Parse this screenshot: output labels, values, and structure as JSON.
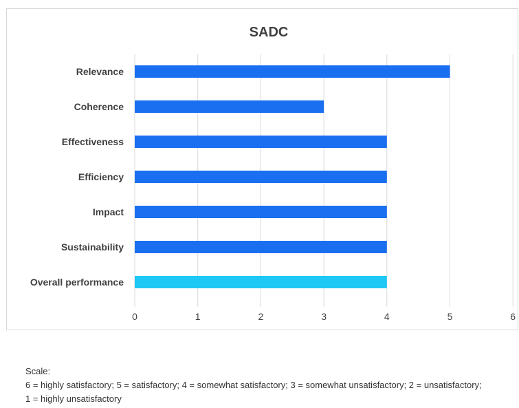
{
  "chart_data": {
    "type": "bar",
    "orientation": "horizontal",
    "title": "SADC",
    "categories": [
      "Relevance",
      "Coherence",
      "Effectiveness",
      "Efficiency",
      "Impact",
      "Sustainability",
      "Overall performance"
    ],
    "values": [
      5,
      3,
      4,
      4,
      4,
      4,
      4
    ],
    "bar_colors": [
      "#1a6ff0",
      "#1a6ff0",
      "#1a6ff0",
      "#1a6ff0",
      "#1a6ff0",
      "#1a6ff0",
      "#1ec8f5"
    ],
    "xlim": [
      0,
      6
    ],
    "xticks": [
      0,
      1,
      2,
      3,
      4,
      5,
      6
    ],
    "grid": "vertical",
    "legend": "none"
  },
  "scale_note": {
    "heading": "Scale:",
    "line1": "6 = highly satisfactory; 5 = satisfactory; 4 = somewhat satisfactory; 3 = somewhat unsatisfactory; 2 = unsatisfactory;",
    "line2": "1 = highly unsatisfactory"
  }
}
